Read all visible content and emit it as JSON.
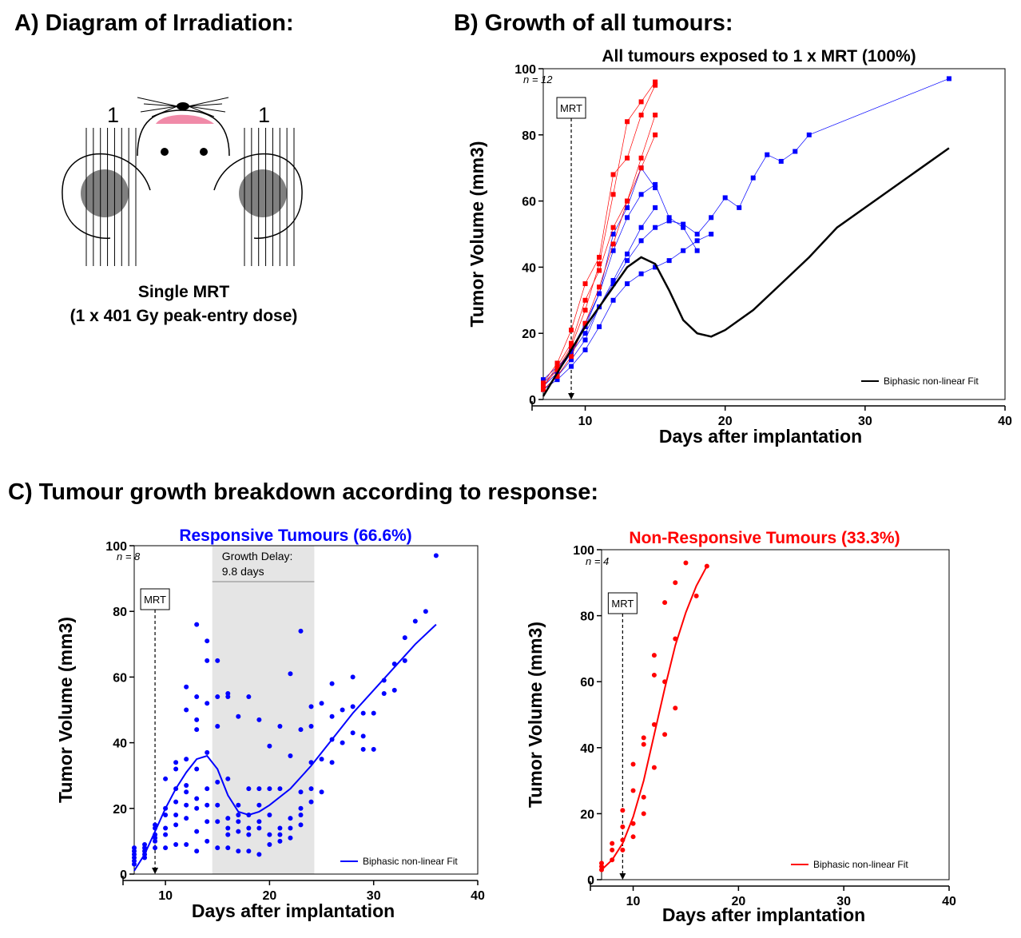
{
  "headings": {
    "a": "A) Diagram of Irradiation:",
    "b": "B) Growth of all tumours:",
    "c": "C) Tumour growth breakdown according to response:"
  },
  "diagram": {
    "left_label": "1",
    "right_label": "1",
    "caption_line1": "Single MRT",
    "caption_line2": "(1 x 401 Gy peak-entry dose)"
  },
  "colors": {
    "responsive": "#0000ff",
    "nonresponsive": "#ff0000",
    "fit_all": "#000000",
    "delay_band": "#e5e5e5"
  },
  "chart_data": [
    {
      "id": "all",
      "type": "line",
      "title": "All tumours exposed to 1 x MRT (100%)",
      "xlabel": "Days after implantation",
      "ylabel": "Tumor Volume (mm3)",
      "xlim": [
        7,
        40
      ],
      "ylim": [
        0,
        100
      ],
      "xticks": [
        10,
        20,
        30,
        40
      ],
      "yticks": [
        0,
        20,
        40,
        60,
        80,
        100
      ],
      "n_label": "n = 12",
      "mrt_label": "MRT",
      "mrt_day": 9,
      "legend": "Biphasic non-linear Fit",
      "series_responsive": [
        [
          [
            7,
            3
          ],
          [
            8,
            7
          ],
          [
            9,
            12
          ],
          [
            10,
            18
          ],
          [
            11,
            28
          ],
          [
            12,
            35
          ],
          [
            13,
            42
          ],
          [
            14,
            48
          ],
          [
            15,
            52
          ],
          [
            16,
            54
          ],
          [
            17,
            53
          ],
          [
            18,
            50
          ],
          [
            19,
            55
          ],
          [
            20,
            61
          ],
          [
            21,
            58
          ],
          [
            22,
            67
          ],
          [
            23,
            74
          ],
          [
            24,
            72
          ],
          [
            25,
            75
          ],
          [
            26,
            80
          ],
          [
            36,
            97
          ]
        ],
        [
          [
            7,
            4
          ],
          [
            8,
            8
          ],
          [
            9,
            14
          ],
          [
            10,
            22
          ],
          [
            11,
            32
          ],
          [
            12,
            45
          ],
          [
            13,
            55
          ],
          [
            14,
            62
          ],
          [
            15,
            65
          ],
          [
            16,
            55
          ],
          [
            17,
            52
          ],
          [
            18,
            45
          ]
        ],
        [
          [
            7,
            3
          ],
          [
            8,
            6
          ],
          [
            9,
            10
          ],
          [
            10,
            15
          ],
          [
            11,
            22
          ],
          [
            12,
            30
          ],
          [
            13,
            35
          ],
          [
            14,
            38
          ],
          [
            15,
            40
          ],
          [
            16,
            42
          ],
          [
            17,
            45
          ],
          [
            18,
            48
          ],
          [
            19,
            50
          ]
        ],
        [
          [
            7,
            5
          ],
          [
            8,
            9
          ],
          [
            9,
            15
          ],
          [
            10,
            23
          ],
          [
            11,
            32
          ],
          [
            12,
            50
          ],
          [
            13,
            58
          ],
          [
            14,
            70
          ],
          [
            15,
            64
          ]
        ],
        [
          [
            7,
            6
          ],
          [
            8,
            10
          ],
          [
            9,
            14
          ],
          [
            10,
            20
          ],
          [
            11,
            28
          ],
          [
            12,
            36
          ],
          [
            13,
            44
          ],
          [
            14,
            52
          ],
          [
            15,
            58
          ]
        ]
      ],
      "series_nonresponsive": [
        [
          [
            7,
            4
          ],
          [
            8,
            9
          ],
          [
            9,
            16
          ],
          [
            10,
            27
          ],
          [
            11,
            41
          ],
          [
            12,
            62
          ],
          [
            13,
            84
          ],
          [
            14,
            90
          ],
          [
            15,
            96
          ]
        ],
        [
          [
            7,
            5
          ],
          [
            8,
            11
          ],
          [
            9,
            21
          ],
          [
            10,
            35
          ],
          [
            11,
            43
          ],
          [
            12,
            68
          ],
          [
            13,
            73
          ],
          [
            14,
            86
          ],
          [
            15,
            95
          ]
        ],
        [
          [
            7,
            3
          ],
          [
            8,
            7
          ],
          [
            9,
            13
          ],
          [
            10,
            23
          ],
          [
            11,
            34
          ],
          [
            12,
            47
          ],
          [
            13,
            60
          ],
          [
            14,
            73
          ],
          [
            15,
            86
          ]
        ],
        [
          [
            7,
            4
          ],
          [
            8,
            10
          ],
          [
            9,
            17
          ],
          [
            10,
            30
          ],
          [
            11,
            39
          ],
          [
            12,
            52
          ],
          [
            13,
            60
          ],
          [
            14,
            70
          ],
          [
            15,
            80
          ]
        ]
      ],
      "fit": [
        [
          7,
          1
        ],
        [
          8,
          8
        ],
        [
          9,
          15
        ],
        [
          10,
          22
        ],
        [
          11,
          28
        ],
        [
          12,
          34
        ],
        [
          13,
          40
        ],
        [
          14,
          43
        ],
        [
          15,
          41
        ],
        [
          16,
          33
        ],
        [
          17,
          24
        ],
        [
          18,
          20
        ],
        [
          19,
          19
        ],
        [
          20,
          21
        ],
        [
          22,
          27
        ],
        [
          24,
          35
        ],
        [
          26,
          43
        ],
        [
          28,
          52
        ],
        [
          30,
          58
        ],
        [
          32,
          64
        ],
        [
          34,
          70
        ],
        [
          36,
          76
        ]
      ]
    },
    {
      "id": "responsive",
      "type": "scatter",
      "title": "Responsive Tumours (66.6%)",
      "xlabel": "Days after implantation",
      "ylabel": "Tumor Volume (mm3)",
      "xlim": [
        7,
        40
      ],
      "ylim": [
        0,
        100
      ],
      "xticks": [
        10,
        20,
        30,
        40
      ],
      "yticks": [
        0,
        20,
        40,
        60,
        80,
        100
      ],
      "n_label": "n = 8",
      "mrt_label": "MRT",
      "mrt_day": 9,
      "growth_delay_label_1": "Growth Delay:",
      "growth_delay_label_2": "9.8 days",
      "growth_delay_range": [
        14.5,
        24.3
      ],
      "legend": "Biphasic non-linear Fit",
      "points": [
        [
          7,
          3
        ],
        [
          7,
          4
        ],
        [
          7,
          5
        ],
        [
          7,
          6
        ],
        [
          7,
          7
        ],
        [
          7,
          8
        ],
        [
          8,
          5
        ],
        [
          8,
          6
        ],
        [
          8,
          7
        ],
        [
          8,
          8
        ],
        [
          8,
          9
        ],
        [
          9,
          8
        ],
        [
          9,
          10
        ],
        [
          9,
          11
        ],
        [
          9,
          12
        ],
        [
          9,
          14
        ],
        [
          9,
          15
        ],
        [
          10,
          8
        ],
        [
          10,
          12
        ],
        [
          10,
          14
        ],
        [
          10,
          18
        ],
        [
          10,
          20
        ],
        [
          10,
          29
        ],
        [
          11,
          9
        ],
        [
          11,
          15
        ],
        [
          11,
          18
        ],
        [
          11,
          22
        ],
        [
          11,
          26
        ],
        [
          11,
          32
        ],
        [
          11,
          34
        ],
        [
          12,
          9
        ],
        [
          12,
          17
        ],
        [
          12,
          21
        ],
        [
          12,
          25
        ],
        [
          12,
          27
        ],
        [
          12,
          35
        ],
        [
          12,
          50
        ],
        [
          12,
          57
        ],
        [
          13,
          7
        ],
        [
          13,
          13
        ],
        [
          13,
          20
        ],
        [
          13,
          23
        ],
        [
          13,
          32
        ],
        [
          13,
          44
        ],
        [
          13,
          47
        ],
        [
          13,
          54
        ],
        [
          13,
          76
        ],
        [
          14,
          10
        ],
        [
          14,
          16
        ],
        [
          14,
          21
        ],
        [
          14,
          26
        ],
        [
          14,
          37
        ],
        [
          14,
          52
        ],
        [
          14,
          65
        ],
        [
          14,
          71
        ],
        [
          15,
          8
        ],
        [
          15,
          16
        ],
        [
          15,
          21
        ],
        [
          15,
          28
        ],
        [
          15,
          45
        ],
        [
          15,
          54
        ],
        [
          15,
          65
        ],
        [
          16,
          8
        ],
        [
          16,
          12
        ],
        [
          16,
          14
        ],
        [
          16,
          17
        ],
        [
          16,
          29
        ],
        [
          16,
          54
        ],
        [
          16,
          55
        ],
        [
          17,
          7
        ],
        [
          17,
          13
        ],
        [
          17,
          16
        ],
        [
          17,
          18
        ],
        [
          17,
          21
        ],
        [
          17,
          48
        ],
        [
          18,
          7
        ],
        [
          18,
          12
        ],
        [
          18,
          14
        ],
        [
          18,
          18
        ],
        [
          18,
          26
        ],
        [
          18,
          54
        ],
        [
          19,
          6
        ],
        [
          19,
          14
        ],
        [
          19,
          16
        ],
        [
          19,
          21
        ],
        [
          19,
          26
        ],
        [
          19,
          47
        ],
        [
          20,
          9
        ],
        [
          20,
          12
        ],
        [
          20,
          18
        ],
        [
          20,
          26
        ],
        [
          20,
          39
        ],
        [
          21,
          10
        ],
        [
          21,
          12
        ],
        [
          21,
          14
        ],
        [
          21,
          26
        ],
        [
          21,
          45
        ],
        [
          22,
          11
        ],
        [
          22,
          14
        ],
        [
          22,
          17
        ],
        [
          22,
          36
        ],
        [
          22,
          61
        ],
        [
          23,
          15
        ],
        [
          23,
          18
        ],
        [
          23,
          20
        ],
        [
          23,
          25
        ],
        [
          23,
          44
        ],
        [
          23,
          74
        ],
        [
          24,
          22
        ],
        [
          24,
          26
        ],
        [
          24,
          34
        ],
        [
          24,
          45
        ],
        [
          24,
          51
        ],
        [
          25,
          25
        ],
        [
          25,
          35
        ],
        [
          25,
          52
        ],
        [
          26,
          34
        ],
        [
          26,
          41
        ],
        [
          26,
          48
        ],
        [
          26,
          58
        ],
        [
          27,
          40
        ],
        [
          27,
          50
        ],
        [
          28,
          43
        ],
        [
          28,
          51
        ],
        [
          28,
          60
        ],
        [
          29,
          38
        ],
        [
          29,
          42
        ],
        [
          29,
          49
        ],
        [
          30,
          38
        ],
        [
          30,
          49
        ],
        [
          31,
          55
        ],
        [
          31,
          59
        ],
        [
          32,
          56
        ],
        [
          32,
          64
        ],
        [
          33,
          65
        ],
        [
          33,
          72
        ],
        [
          34,
          77
        ],
        [
          35,
          80
        ],
        [
          36,
          97
        ]
      ],
      "fit": [
        [
          7,
          1
        ],
        [
          8,
          6
        ],
        [
          9,
          13
        ],
        [
          10,
          20
        ],
        [
          11,
          26
        ],
        [
          12,
          31
        ],
        [
          13,
          35
        ],
        [
          14,
          36
        ],
        [
          15,
          32
        ],
        [
          16,
          24
        ],
        [
          17,
          19
        ],
        [
          18,
          18
        ],
        [
          19,
          19
        ],
        [
          20,
          21
        ],
        [
          22,
          26
        ],
        [
          24,
          33
        ],
        [
          26,
          41
        ],
        [
          28,
          49
        ],
        [
          30,
          56
        ],
        [
          32,
          63
        ],
        [
          34,
          70
        ],
        [
          36,
          76
        ]
      ]
    },
    {
      "id": "nonresponsive",
      "type": "scatter",
      "title": "Non-Responsive Tumours (33.3%)",
      "xlabel": "Days after implantation",
      "ylabel": "Tumor Volume (mm3)",
      "xlim": [
        7,
        40
      ],
      "ylim": [
        0,
        100
      ],
      "xticks": [
        10,
        20,
        30,
        40
      ],
      "yticks": [
        0,
        20,
        40,
        60,
        80,
        100
      ],
      "n_label": "n = 4",
      "mrt_label": "MRT",
      "mrt_day": 9,
      "legend": "Biphasic non-linear Fit",
      "points": [
        [
          7,
          3
        ],
        [
          7,
          4
        ],
        [
          7,
          5
        ],
        [
          8,
          6
        ],
        [
          8,
          9
        ],
        [
          8,
          11
        ],
        [
          9,
          9
        ],
        [
          9,
          12
        ],
        [
          9,
          16
        ],
        [
          9,
          21
        ],
        [
          10,
          13
        ],
        [
          10,
          17
        ],
        [
          10,
          27
        ],
        [
          10,
          35
        ],
        [
          11,
          20
        ],
        [
          11,
          25
        ],
        [
          11,
          41
        ],
        [
          11,
          43
        ],
        [
          12,
          34
        ],
        [
          12,
          47
        ],
        [
          12,
          62
        ],
        [
          12,
          68
        ],
        [
          13,
          44
        ],
        [
          13,
          60
        ],
        [
          13,
          84
        ],
        [
          14,
          52
        ],
        [
          14,
          73
        ],
        [
          14,
          90
        ],
        [
          15,
          96
        ],
        [
          16,
          86
        ],
        [
          17,
          95
        ]
      ],
      "fit": [
        [
          7,
          3
        ],
        [
          8,
          6
        ],
        [
          9,
          11
        ],
        [
          10,
          19
        ],
        [
          11,
          30
        ],
        [
          12,
          44
        ],
        [
          13,
          58
        ],
        [
          14,
          71
        ],
        [
          15,
          81
        ],
        [
          16,
          89
        ],
        [
          17,
          95
        ]
      ]
    }
  ]
}
